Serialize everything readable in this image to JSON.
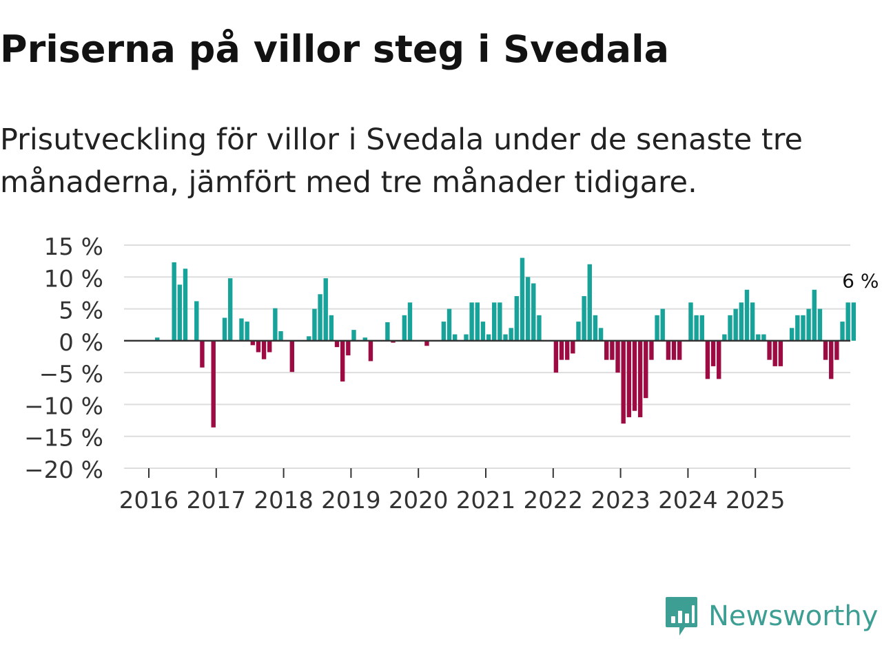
{
  "title": "Priserna på villor steg i Svedala",
  "subtitle": "Prisutveckling för villor i Svedala under de senaste tre månaderna, jämfört med tre månader tidigare.",
  "brand": {
    "name": "Newsworthy",
    "color": "#3d9e93",
    "icon": "bar-chart-icon"
  },
  "colors": {
    "positive": "#17a39a",
    "negative": "#9c0b42",
    "grid": "#dddddd",
    "zero_line": "#333333",
    "axis_text": "#333333"
  },
  "chart_data": {
    "type": "bar",
    "title": "Priserna på villor steg i Svedala",
    "xlabel": "",
    "ylabel": "",
    "ylim": [
      -20,
      15
    ],
    "y_ticks": [
      15,
      10,
      5,
      0,
      -5,
      -10,
      -15,
      -20
    ],
    "y_tick_labels": [
      "15 %",
      "10 %",
      "5 %",
      "0 %",
      "−5 %",
      "−10 %",
      "−15 %",
      "−20 %"
    ],
    "x_tick_labels": [
      "2016",
      "2017",
      "2018",
      "2019",
      "2020",
      "2021",
      "2022",
      "2023",
      "2024",
      "2025"
    ],
    "start_year": 2016,
    "start_month": 1,
    "values": [
      0.0,
      0.5,
      0.0,
      0.0,
      12.3,
      8.8,
      11.3,
      0.0,
      6.2,
      -4.2,
      0.0,
      -13.6,
      0.0,
      3.6,
      9.8,
      0.0,
      3.5,
      3.0,
      -0.7,
      -1.8,
      -2.9,
      -1.8,
      5.1,
      1.5,
      0.0,
      -4.9,
      0.0,
      0.0,
      0.7,
      5.0,
      7.3,
      9.8,
      4.0,
      -1.0,
      -6.4,
      -2.3,
      1.7,
      0.0,
      0.5,
      -3.2,
      0.0,
      0.0,
      2.9,
      -0.3,
      0.0,
      4.0,
      6.0,
      0.0,
      0.0,
      -0.8,
      0.0,
      0.0,
      3.0,
      5.0,
      1.0,
      0.0,
      1.0,
      6.0,
      6.0,
      3.0,
      1.0,
      6.0,
      6.0,
      1.0,
      2.0,
      7.0,
      13.0,
      10.0,
      9.0,
      4.0,
      0.0,
      0.0,
      -5.0,
      -3.0,
      -3.0,
      -2.0,
      3.0,
      7.0,
      12.0,
      4.0,
      2.0,
      -3.0,
      -3.0,
      -5.0,
      -13.0,
      -12.0,
      -11.0,
      -12.0,
      -9.0,
      -3.0,
      4.0,
      5.0,
      -3.0,
      -3.0,
      -3.0,
      0.0,
      6.0,
      4.0,
      4.0,
      -6.0,
      -4.0,
      -6.0,
      1.0,
      4.0,
      5.0,
      6.0,
      8.0,
      6.0,
      1.0,
      1.0,
      -3.0,
      -4.0,
      -4.0,
      0.0,
      2.0,
      4.0,
      4.0,
      5.0,
      8.0,
      5.0,
      -3.0,
      -6.0,
      -3.0,
      3.0,
      6.0,
      6.0
    ],
    "annotation": {
      "text": "6 %",
      "target": "last"
    }
  }
}
